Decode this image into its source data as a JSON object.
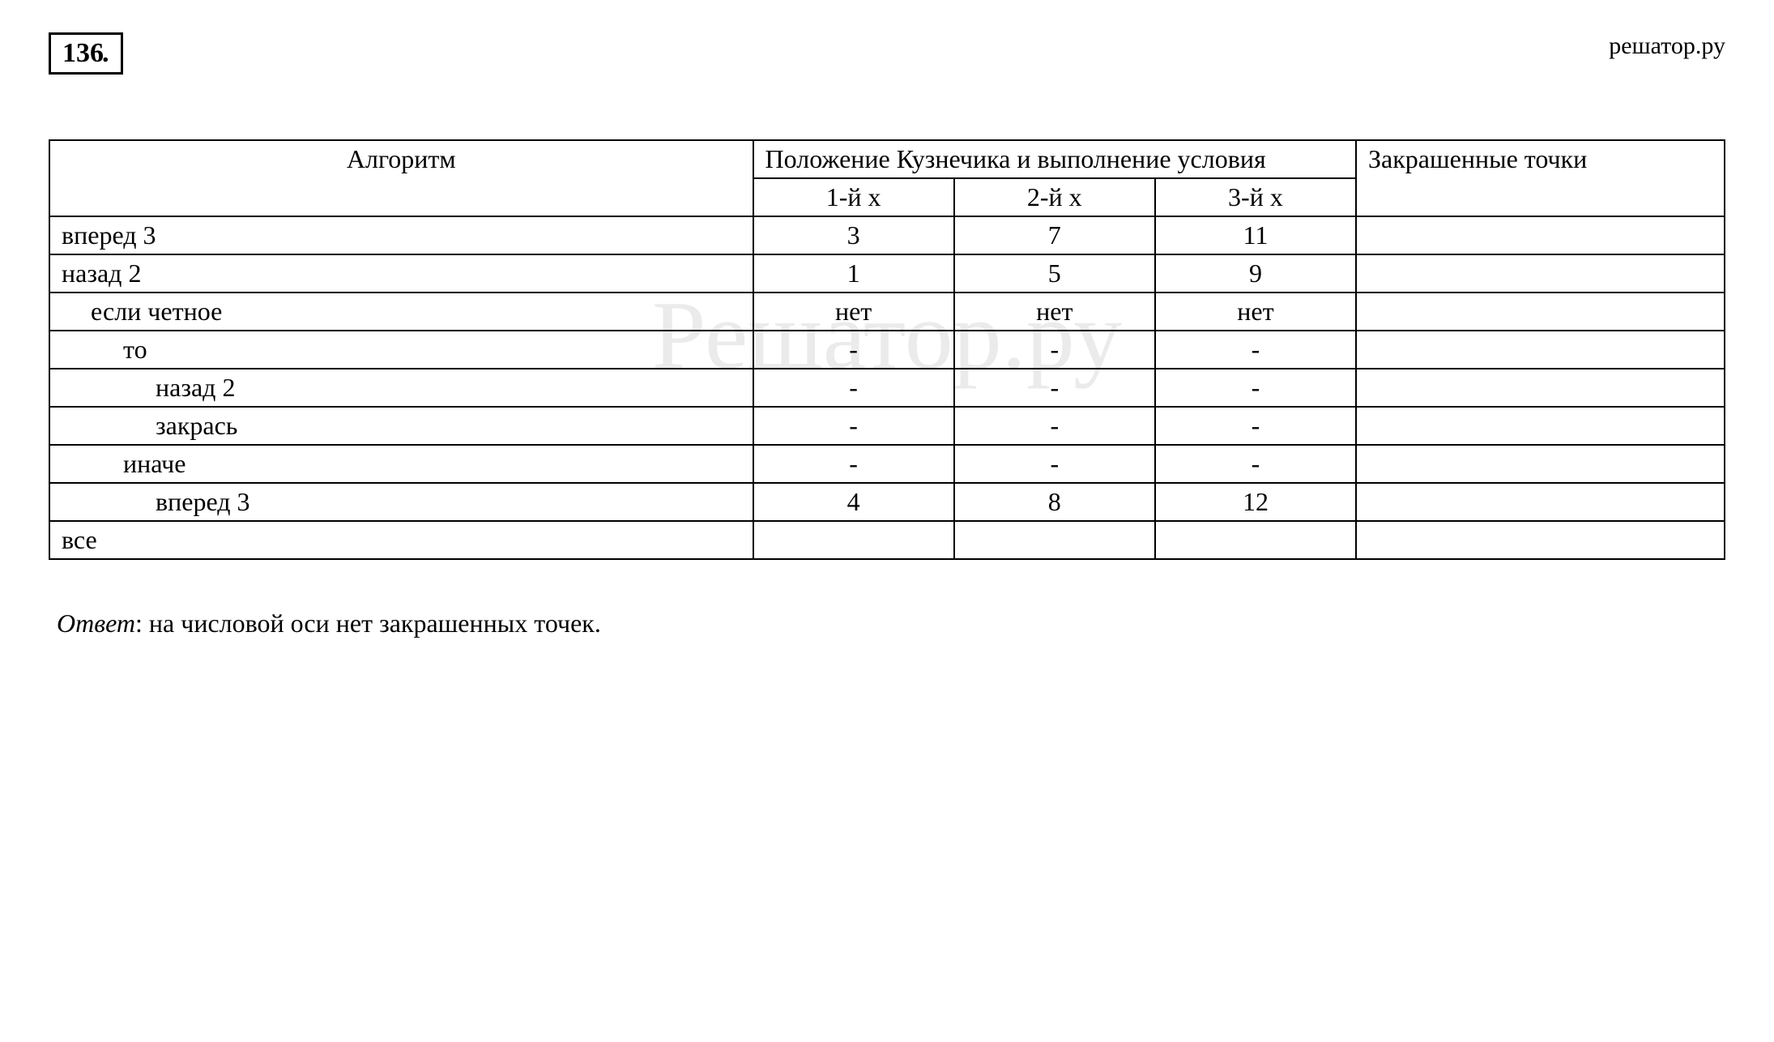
{
  "site_label": "решатор.ру",
  "problem_number": "136",
  "watermark_text": "Решатор.ру",
  "table": {
    "header": {
      "algorithm": "Алгоритм",
      "position": "Положение Кузнечика и выполнение условия",
      "painted": "Закрашенные точки",
      "x1": "1-й х",
      "x2": "2-й х",
      "x3": "3-й х"
    },
    "rows": [
      {
        "label": "вперед 3",
        "indent": 0,
        "x1": "3",
        "x2": "7",
        "x3": "11",
        "painted": ""
      },
      {
        "label": "назад 2",
        "indent": 0,
        "x1": "1",
        "x2": "5",
        "x3": "9",
        "painted": ""
      },
      {
        "label": "если четное",
        "indent": 1,
        "x1": "нет",
        "x2": "нет",
        "x3": "нет",
        "painted": ""
      },
      {
        "label": "то",
        "indent": 2,
        "x1": "-",
        "x2": "-",
        "x3": "-",
        "painted": ""
      },
      {
        "label": "назад 2",
        "indent": 3,
        "x1": "-",
        "x2": "-",
        "x3": "-",
        "painted": ""
      },
      {
        "label": "закрась",
        "indent": 3,
        "x1": "-",
        "x2": "-",
        "x3": "-",
        "painted": ""
      },
      {
        "label": "иначе",
        "indent": 2,
        "x1": "-",
        "x2": "-",
        "x3": "-",
        "painted": ""
      },
      {
        "label": "вперед 3",
        "indent": 3,
        "x1": "4",
        "x2": "8",
        "x3": "12",
        "painted": ""
      },
      {
        "label": "все",
        "indent": 0,
        "x1": "",
        "x2": "",
        "x3": "",
        "painted": ""
      }
    ]
  },
  "answer": {
    "label": "Ответ",
    "text": ": на числовой оси нет закрашенных точек."
  },
  "styling": {
    "background_color": "#ffffff",
    "text_color": "#000000",
    "border_color": "#000000",
    "font_family": "Times New Roman",
    "base_fontsize": 32,
    "watermark_color": "rgba(0,0,0,0.08)",
    "watermark_fontsize": 120
  }
}
